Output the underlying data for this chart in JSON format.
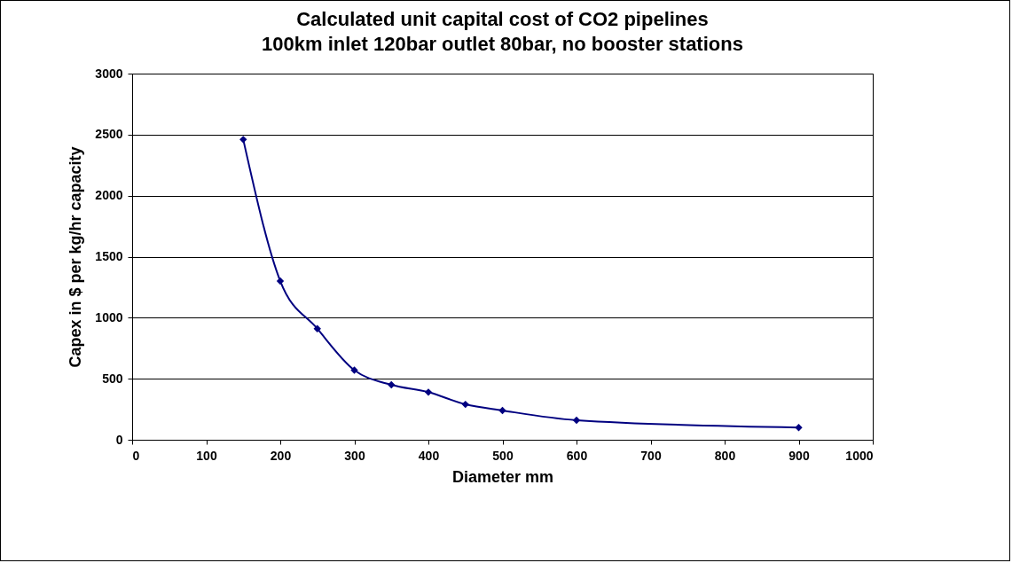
{
  "chart_data": {
    "type": "line",
    "title": "Calculated unit capital cost of CO2 pipelines",
    "subtitle": "100km inlet 120bar outlet 80bar,  no booster stations",
    "xlabel": "Diameter mm",
    "ylabel": "Capex in $ per kg/hr capacity",
    "x": [
      150,
      200,
      250,
      300,
      350,
      400,
      450,
      500,
      600,
      900
    ],
    "series": [
      {
        "color": "#000080",
        "values": [
          2460,
          1300,
          910,
          570,
          450,
          390,
          290,
          240,
          160,
          100
        ]
      }
    ],
    "xlim": [
      0,
      1000
    ],
    "xticks": [
      0,
      100,
      200,
      300,
      400,
      500,
      600,
      700,
      800,
      900,
      1000
    ],
    "ylim": [
      0,
      3000
    ],
    "yticks": [
      0,
      500,
      1000,
      1500,
      2000,
      2500,
      3000
    ],
    "grid": "y",
    "legend": false,
    "marker": "diamond",
    "line_style": "solid"
  }
}
